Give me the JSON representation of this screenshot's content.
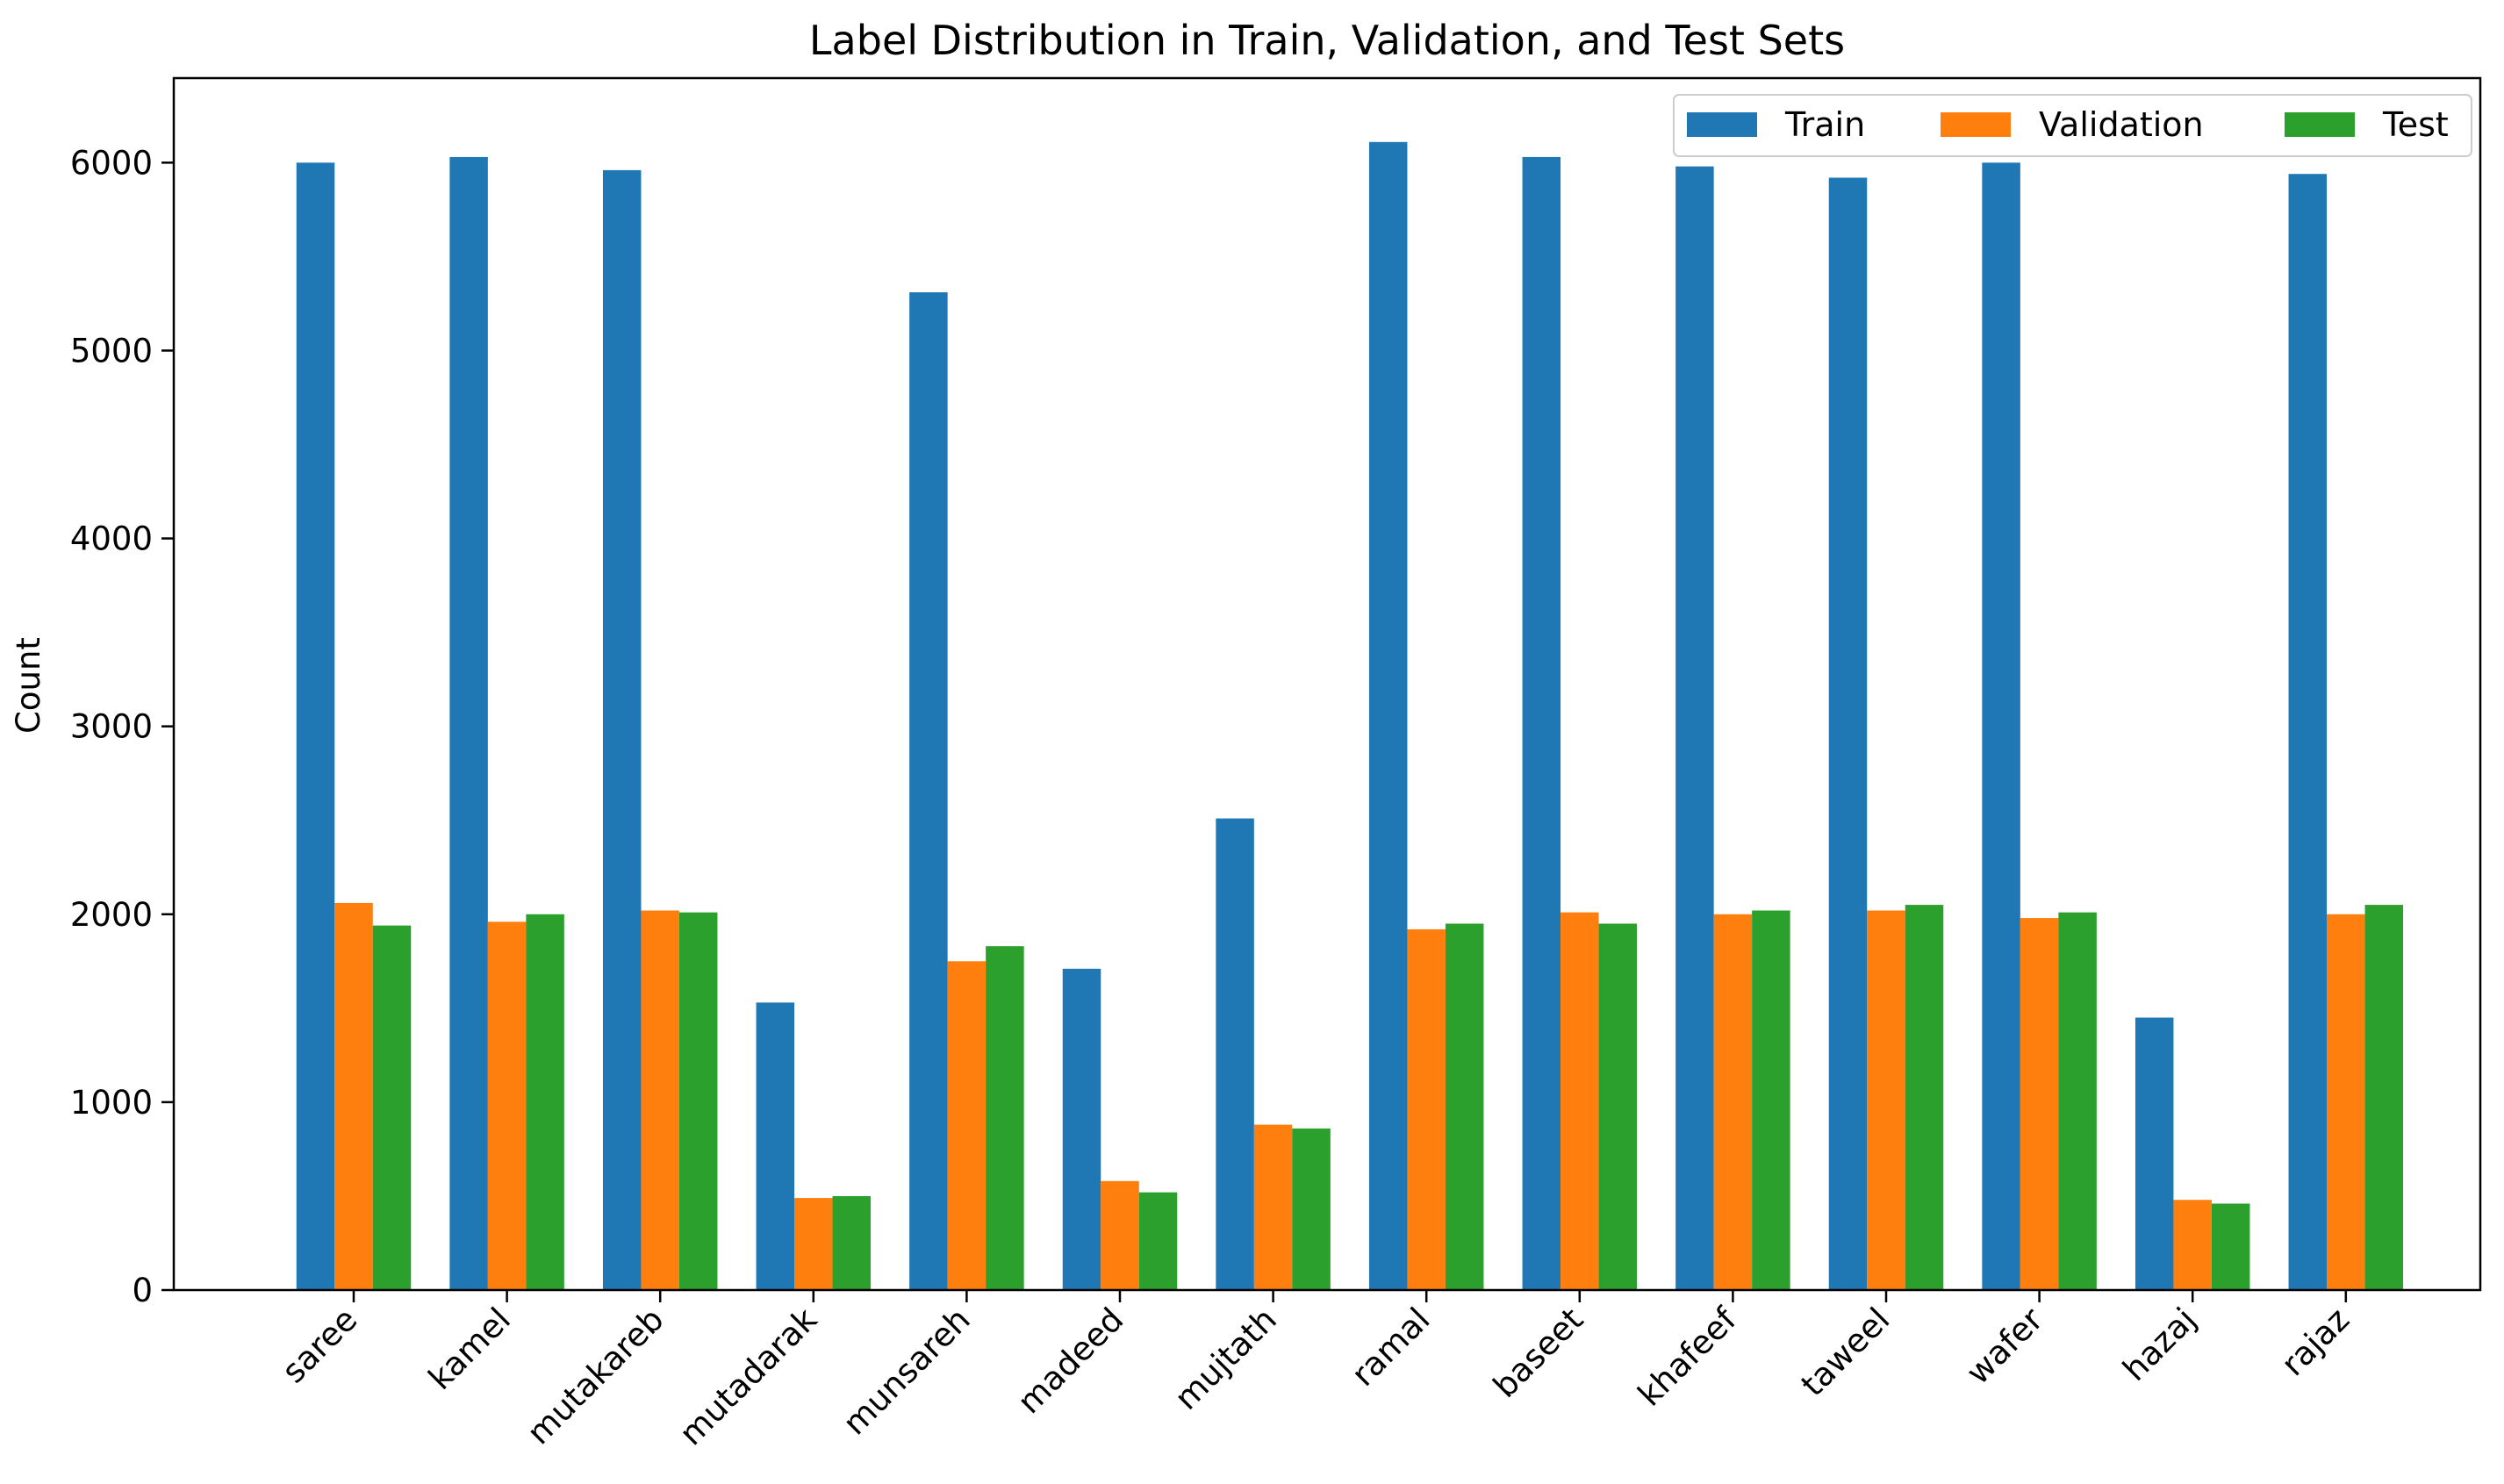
{
  "chart_data": {
    "type": "bar",
    "title": "Label Distribution in Train, Validation, and Test Sets",
    "xlabel": "",
    "ylabel": "Count",
    "ylim": [
      0,
      6450
    ],
    "yticks": [
      0,
      1000,
      2000,
      3000,
      4000,
      5000,
      6000
    ],
    "grid": false,
    "legend_position": "top-right",
    "categories": [
      "saree",
      "kamel",
      "mutakareb",
      "mutadarak",
      "munsareh",
      "madeed",
      "mujtath",
      "ramal",
      "baseet",
      "khafeef",
      "taweel",
      "wafer",
      "hazaj",
      "rajaz"
    ],
    "series": [
      {
        "name": "Train",
        "color": "#1f77b4",
        "values": [
          6000,
          6030,
          5960,
          1530,
          5310,
          1710,
          2510,
          6110,
          6030,
          5980,
          5920,
          6000,
          1450,
          5940
        ]
      },
      {
        "name": "Validation",
        "color": "#ff7f0e",
        "values": [
          2060,
          1960,
          2020,
          490,
          1750,
          580,
          880,
          1920,
          2010,
          2000,
          2020,
          1980,
          480,
          2000
        ]
      },
      {
        "name": "Test",
        "color": "#2ca02c",
        "values": [
          1940,
          2000,
          2010,
          500,
          1830,
          520,
          860,
          1950,
          1950,
          2020,
          2050,
          2010,
          460,
          2050
        ]
      }
    ]
  }
}
